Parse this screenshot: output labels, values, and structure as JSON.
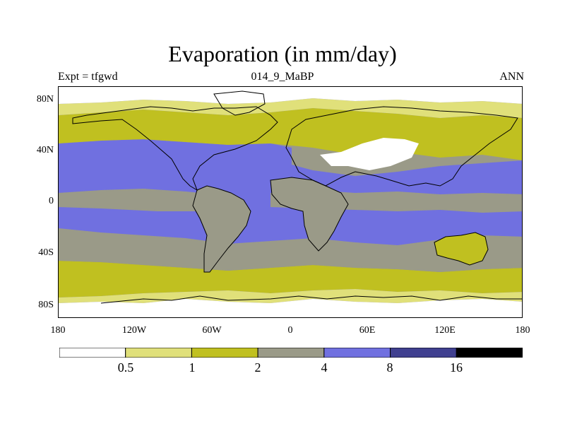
{
  "title": "Evaporation (in mm/day)",
  "subtitle_left": "Expt = tfgwd",
  "subtitle_center": "014_9_MaBP",
  "subtitle_right": "ANN",
  "colors": {
    "level_0": "#ffffff",
    "level_1": "#e0e07a",
    "level_2": "#c0c020",
    "level_3": "#9a9a88",
    "level_4": "#7070e0",
    "level_5": "#404090",
    "level_6": "#000000"
  },
  "chart_data": {
    "type": "heatmap",
    "title": "Evaporation (in mm/day)",
    "x_ticks": [
      "180",
      "120W",
      "60W",
      "0",
      "60E",
      "120E",
      "180"
    ],
    "y_ticks": [
      "80N",
      "40N",
      "0",
      "40S",
      "80S"
    ],
    "xlim": [
      -180,
      180
    ],
    "ylim": [
      -90,
      90
    ],
    "colorbar": {
      "levels": [
        0.5,
        1,
        2,
        4,
        8,
        16
      ],
      "labels": [
        "0.5",
        "1",
        "2",
        "4",
        "8",
        "16"
      ],
      "colors": [
        "#ffffff",
        "#e0e07a",
        "#c0c020",
        "#9a9a88",
        "#7070e0",
        "#404090",
        "#000000"
      ]
    }
  }
}
